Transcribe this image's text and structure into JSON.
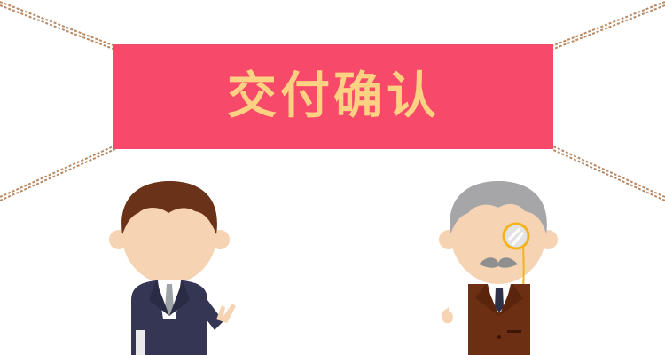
{
  "banner": {
    "title": "交付确认"
  },
  "colors": {
    "banner": "#f7496a",
    "banner_text": "#fcd282",
    "rope": "#b88a63",
    "skin": "#f5d3b3",
    "young_hair": "#6a3218",
    "young_suit": "#343654",
    "old_hair": "#a6a6a8",
    "old_suit": "#6c2f13",
    "monocle": "#f2b31e"
  },
  "icons": [
    "rope-top-left",
    "rope-top-right",
    "rope-bottom-left",
    "rope-bottom-right",
    "young-man-figure",
    "old-man-figure",
    "monocle-icon",
    "mustache-icon",
    "briefcase-icon"
  ]
}
